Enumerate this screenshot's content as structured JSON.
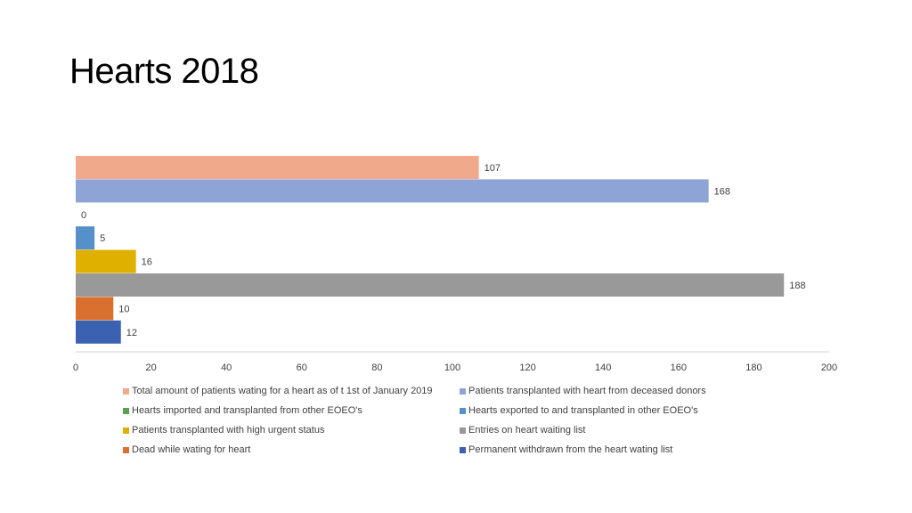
{
  "slide": {
    "title": "Hearts 2018"
  },
  "chart_data": {
    "type": "bar",
    "orientation": "horizontal",
    "xlim": [
      0,
      200
    ],
    "x_ticks": [
      "0",
      "20",
      "40",
      "60",
      "80",
      "100",
      "120",
      "140",
      "160",
      "180",
      "200"
    ],
    "grid": false,
    "legend_position": "bottom",
    "series": [
      {
        "name": "Total amount of patients wating for a heart as of t 1st of January 2019",
        "value": 107,
        "label": "107",
        "color": "#f0a98a"
      },
      {
        "name": "Patients transplanted with heart from deceased donors",
        "value": 168,
        "label": "168",
        "color": "#8fa4d6"
      },
      {
        "name": "Hearts imported and transplanted from other EOEO's",
        "value": 0,
        "label": "0",
        "color": "#59a14f"
      },
      {
        "name": "Hearts exported to and transplanted in other EOEO's",
        "value": 5,
        "label": "5",
        "color": "#5590c8"
      },
      {
        "name": "Patients transplanted with high urgent status",
        "value": 16,
        "label": "16",
        "color": "#e0b000"
      },
      {
        "name": "Entries on heart waiting list",
        "value": 188,
        "label": "188",
        "color": "#999999"
      },
      {
        "name": "Dead while wating for heart",
        "value": 10,
        "label": "10",
        "color": "#d97030"
      },
      {
        "name": "Permanent withdrawn from the heart wating list",
        "value": 12,
        "label": "12",
        "color": "#3b62b0"
      }
    ]
  }
}
